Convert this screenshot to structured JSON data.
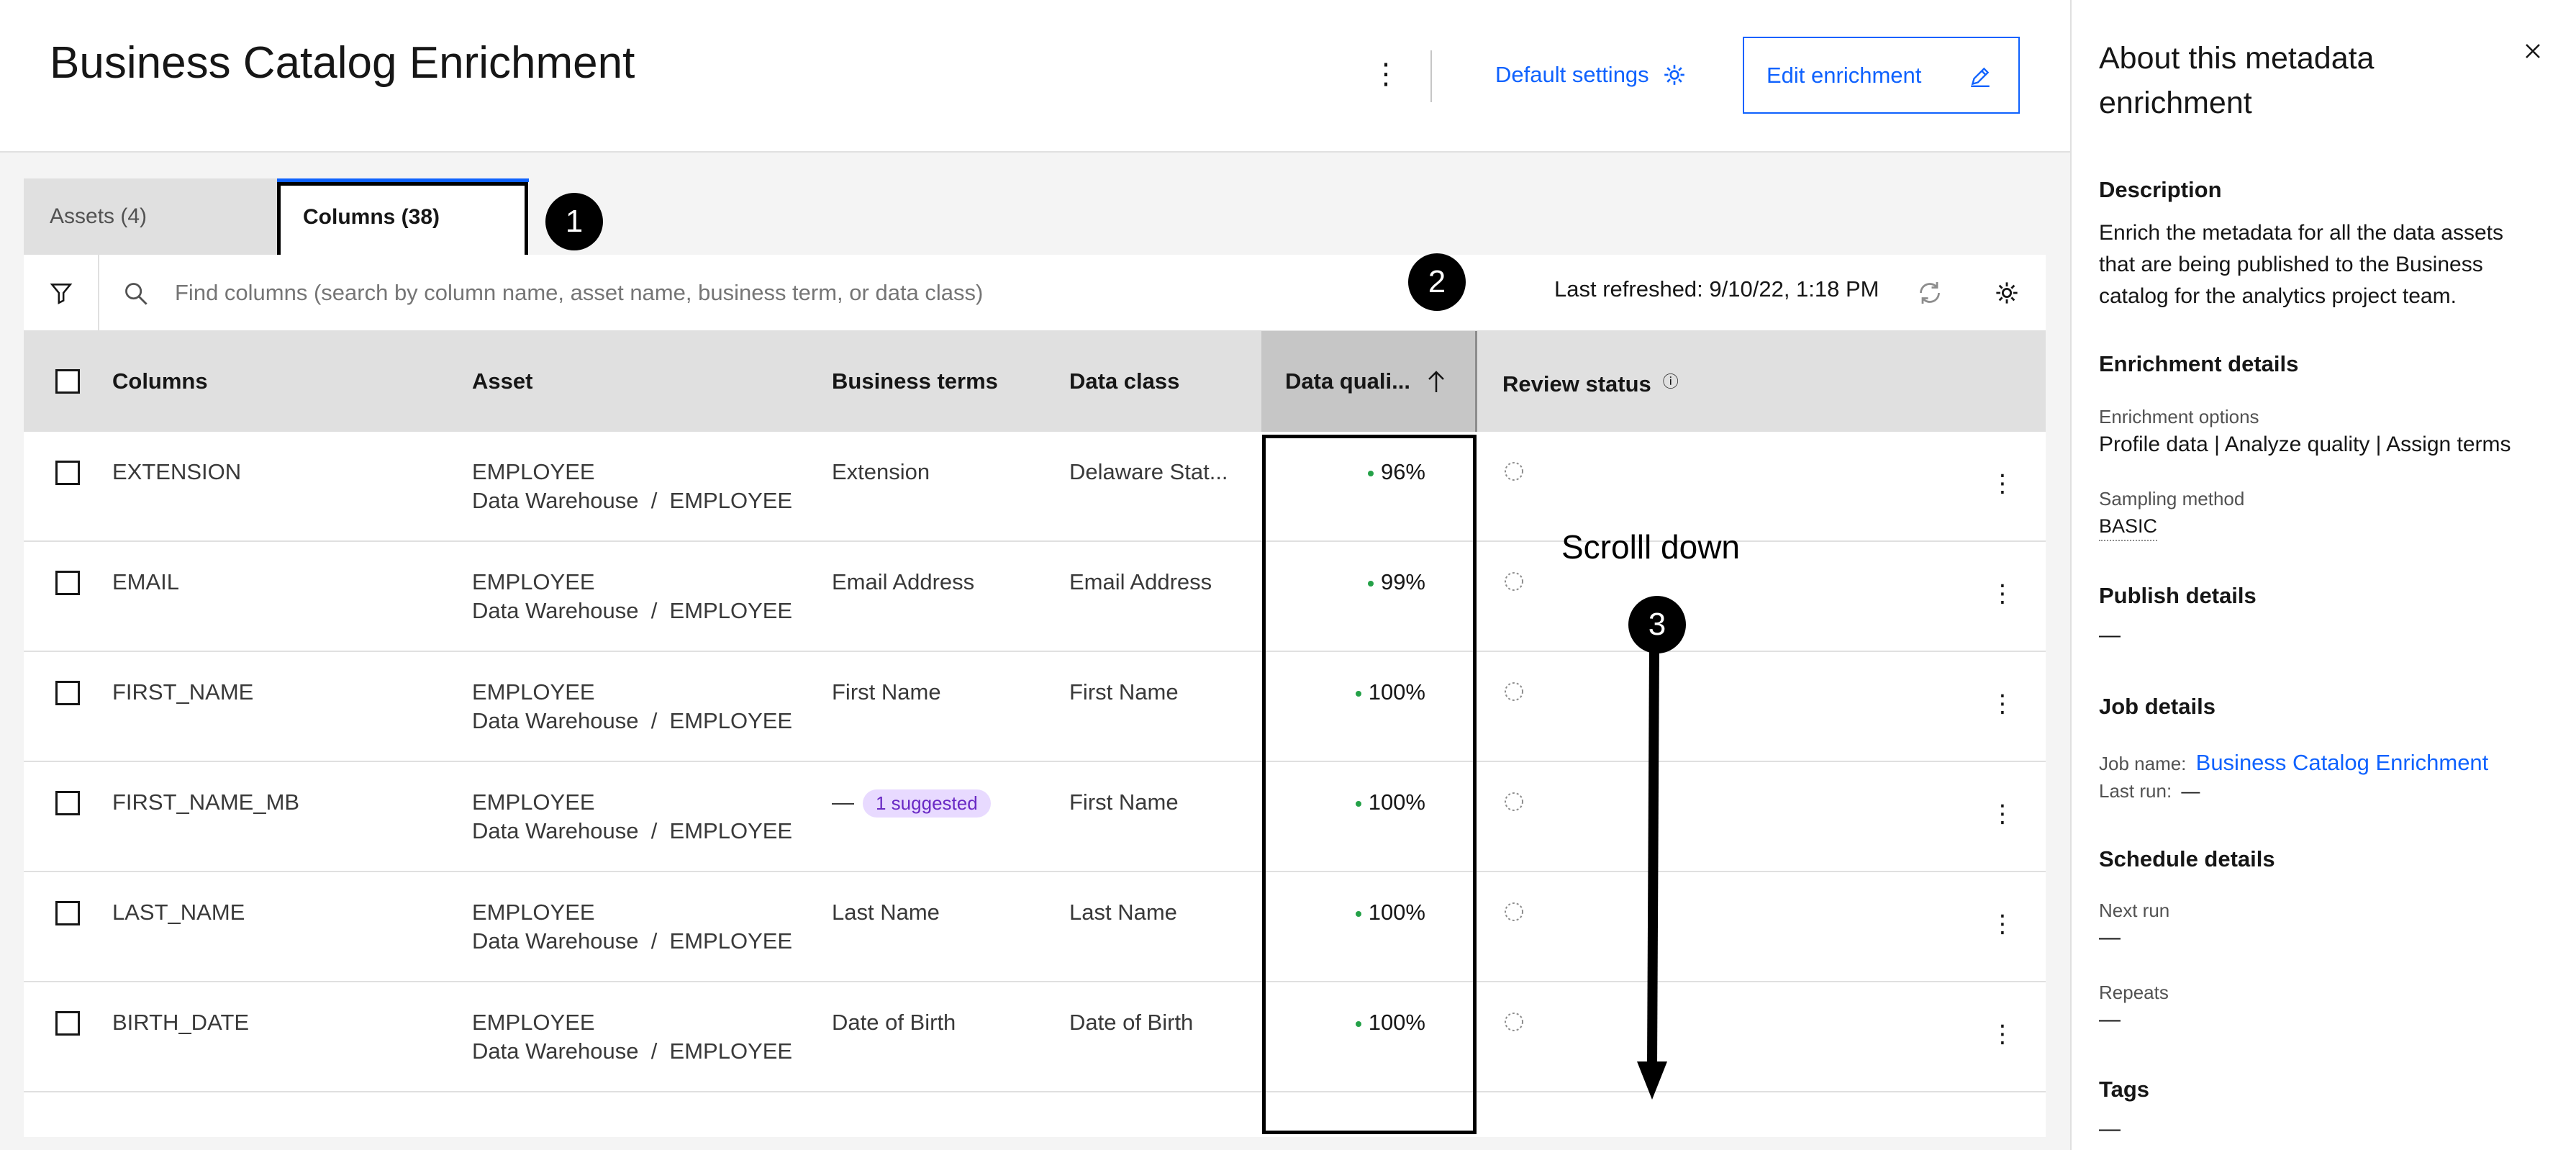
{
  "header": {
    "title": "Business Catalog Enrichment",
    "overflow": "⋮",
    "default_settings_label": "Default settings",
    "edit_label": "Edit enrichment"
  },
  "tabs": [
    {
      "label": "Assets (4)"
    },
    {
      "label": "Columns (38)",
      "selected": true
    }
  ],
  "toolbar": {
    "search_placeholder": "Find columns (search by column name, asset name, business term, or data class)",
    "last_refreshed": "Last refreshed: 9/10/22, 1:18 PM"
  },
  "table": {
    "headers": {
      "columns": "Columns",
      "asset": "Asset",
      "business_terms": "Business terms",
      "data_class": "Data class",
      "data_quality": "Data quali...",
      "review_status": "Review status"
    },
    "rows": [
      {
        "column": "EXTENSION",
        "asset": "EMPLOYEE",
        "asset_path": "Data Warehouse  /  EMPLOYEE",
        "term": "Extension",
        "data_class": "Delaware Stat...",
        "quality": "96%"
      },
      {
        "column": "EMAIL",
        "asset": "EMPLOYEE",
        "asset_path": "Data Warehouse  /  EMPLOYEE",
        "term": "Email Address",
        "data_class": "Email Address",
        "quality": "99%"
      },
      {
        "column": "FIRST_NAME",
        "asset": "EMPLOYEE",
        "asset_path": "Data Warehouse  /  EMPLOYEE",
        "term": "First Name",
        "data_class": "First Name",
        "quality": "100%"
      },
      {
        "column": "FIRST_NAME_MB",
        "asset": "EMPLOYEE",
        "asset_path": "Data Warehouse  /  EMPLOYEE",
        "term": "—",
        "term_badge": "1 suggested",
        "data_class": "First Name",
        "quality": "100%"
      },
      {
        "column": "LAST_NAME",
        "asset": "EMPLOYEE",
        "asset_path": "Data Warehouse  /  EMPLOYEE",
        "term": "Last Name",
        "data_class": "Last Name",
        "quality": "100%"
      },
      {
        "column": "BIRTH_DATE",
        "asset": "EMPLOYEE",
        "asset_path": "Data Warehouse  /  EMPLOYEE",
        "term": "Date of Birth",
        "data_class": "Date of Birth",
        "quality": "100%"
      }
    ]
  },
  "annotations": {
    "callout_1": "1",
    "callout_2": "2",
    "callout_3": "3",
    "scroll_text": "Scrolll down"
  },
  "panel": {
    "title": "About this metadata enrichment",
    "description_heading": "Description",
    "description": "Enrich the metadata for all the data assets that are being published to the Business catalog for the analytics project team.",
    "enrichment_heading": "Enrichment details",
    "options_label": "Enrichment options",
    "options_value": "Profile data | Analyze quality | Assign terms",
    "sampling_label": "Sampling method",
    "sampling_value": "BASIC",
    "publish_heading": "Publish details",
    "publish_value": "—",
    "job_heading": "Job details",
    "job_name_label": "Job name:",
    "job_name_value": "Business Catalog Enrichment",
    "last_run_label": "Last run:",
    "last_run_value": "—",
    "schedule_heading": "Schedule details",
    "next_run_label": "Next run",
    "next_run_value": "—",
    "repeats_label": "Repeats",
    "repeats_value": "—",
    "tags_heading": "Tags",
    "tags_value": "—"
  },
  "colors": {
    "accent": "#0f62fe",
    "quality_dot": "#24a148",
    "badge_bg": "#e8daff",
    "badge_text": "#6929c4"
  }
}
